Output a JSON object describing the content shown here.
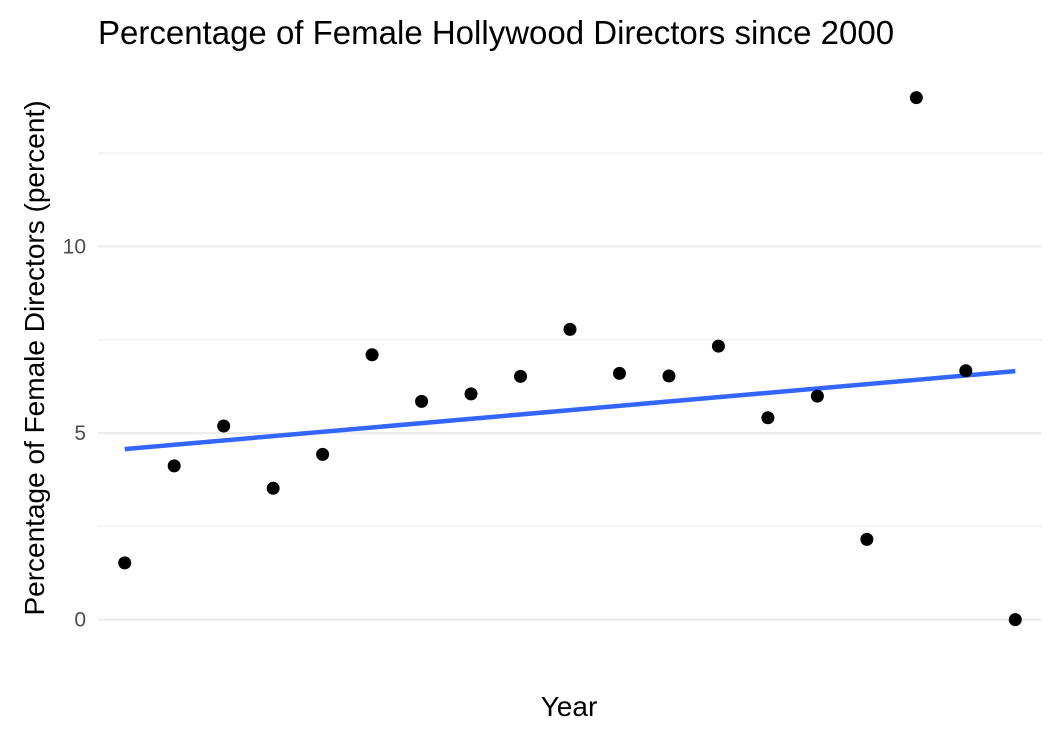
{
  "chart_data": {
    "type": "scatter",
    "title": "Percentage of Female Hollywood Directors since 2000",
    "xlabel": "Year",
    "ylabel": "Percentage of Female Directors (percent)",
    "ylim": [
      -0.6,
      15.0
    ],
    "y_ticks": [
      0,
      5,
      10
    ],
    "y_minor_ticks": [
      2.5,
      7.5,
      12.5
    ],
    "x_tick_labels_shown": false,
    "grid": true,
    "x": [
      2000,
      2001,
      2002,
      2003,
      2004,
      2005,
      2006,
      2007,
      2008,
      2009,
      2010,
      2011,
      2012,
      2013,
      2014,
      2015,
      2016,
      2017,
      2018
    ],
    "y": [
      1.52,
      4.12,
      5.19,
      3.52,
      4.43,
      7.1,
      5.85,
      6.05,
      6.52,
      7.78,
      6.6,
      6.53,
      7.33,
      5.41,
      5.99,
      2.15,
      13.99,
      6.67,
      0.0
    ],
    "trend_line": {
      "x": [
        2000,
        2018
      ],
      "y": [
        4.57,
        6.66
      ],
      "color": "#3366ff"
    },
    "point_color": "#000000"
  }
}
